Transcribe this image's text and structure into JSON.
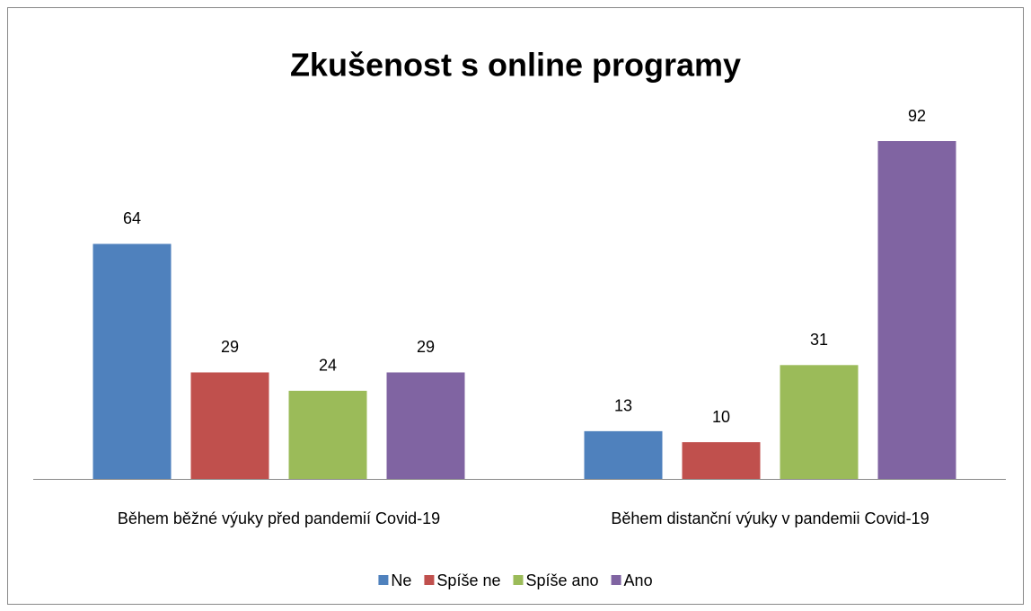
{
  "chart_data": {
    "type": "bar",
    "title": "Zkušenost s online programy",
    "categories": [
      "Během běžné výuky před pandemií Covid-19",
      "Během distanční výuky v pandemii Covid-19"
    ],
    "series": [
      {
        "name": "Ne",
        "color": "#4f81bd",
        "values": [
          64,
          13
        ]
      },
      {
        "name": "Spíše ne",
        "color": "#c0504d",
        "values": [
          29,
          10
        ]
      },
      {
        "name": "Spíše ano",
        "color": "#9bbb59",
        "values": [
          24,
          31
        ]
      },
      {
        "name": "Ano",
        "color": "#8064a2",
        "values": [
          29,
          92
        ]
      }
    ],
    "legend": "bottom"
  }
}
